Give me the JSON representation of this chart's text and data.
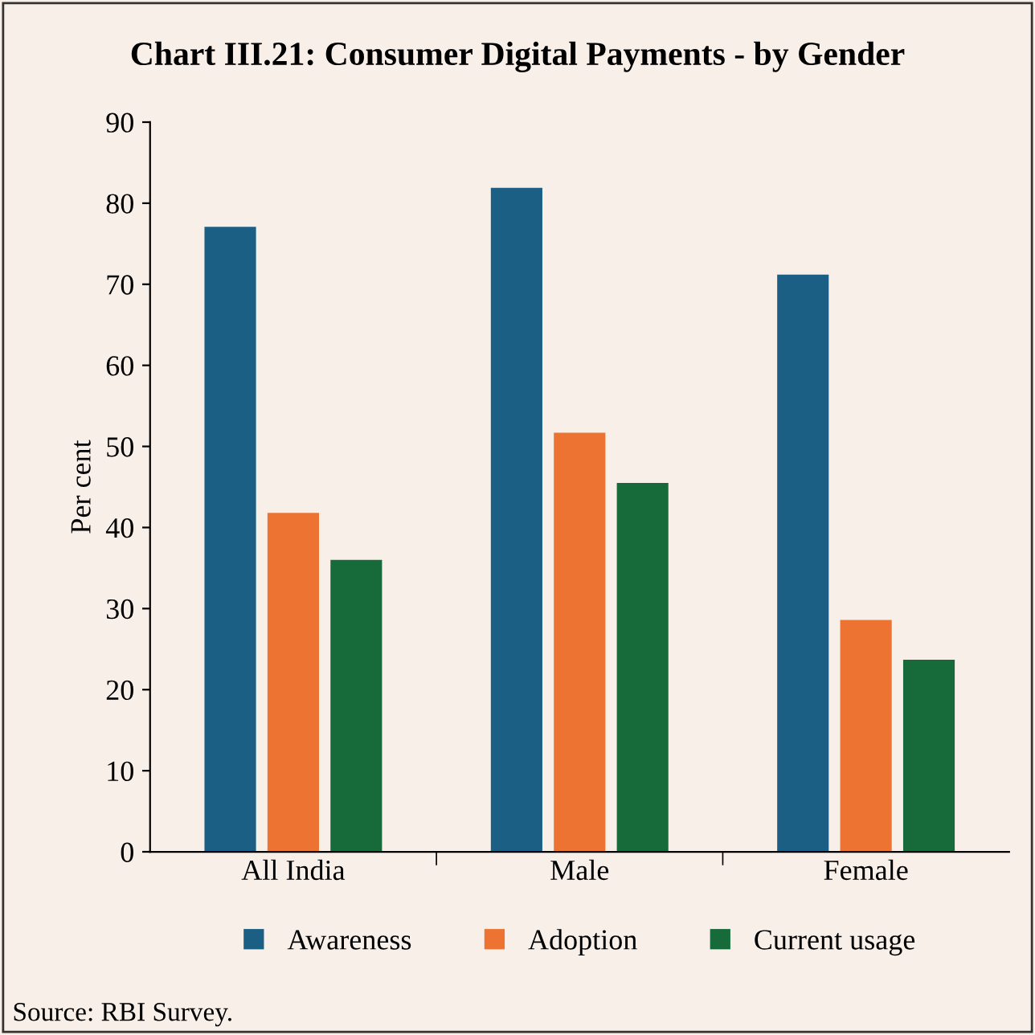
{
  "chart_data": {
    "type": "bar",
    "title": "Chart III.21: Consumer Digital Payments - by Gender",
    "ylabel": "Per cent",
    "categories": [
      "All India",
      "Male",
      "Female"
    ],
    "series": [
      {
        "name": "Awareness",
        "color": "#1c5f84",
        "values": [
          77.1,
          81.9,
          71.2
        ]
      },
      {
        "name": "Adoption",
        "color": "#ed7332",
        "values": [
          41.8,
          51.7,
          28.6
        ]
      },
      {
        "name": "Current usage",
        "color": "#176b3b",
        "values": [
          36.0,
          45.5,
          23.7
        ]
      }
    ],
    "ylim": [
      0,
      90
    ],
    "yticks": [
      0,
      10,
      20,
      30,
      40,
      50,
      60,
      70,
      80,
      90
    ],
    "grid": false,
    "legend": "bottom",
    "annotations": [
      "Source: RBI Survey."
    ]
  }
}
